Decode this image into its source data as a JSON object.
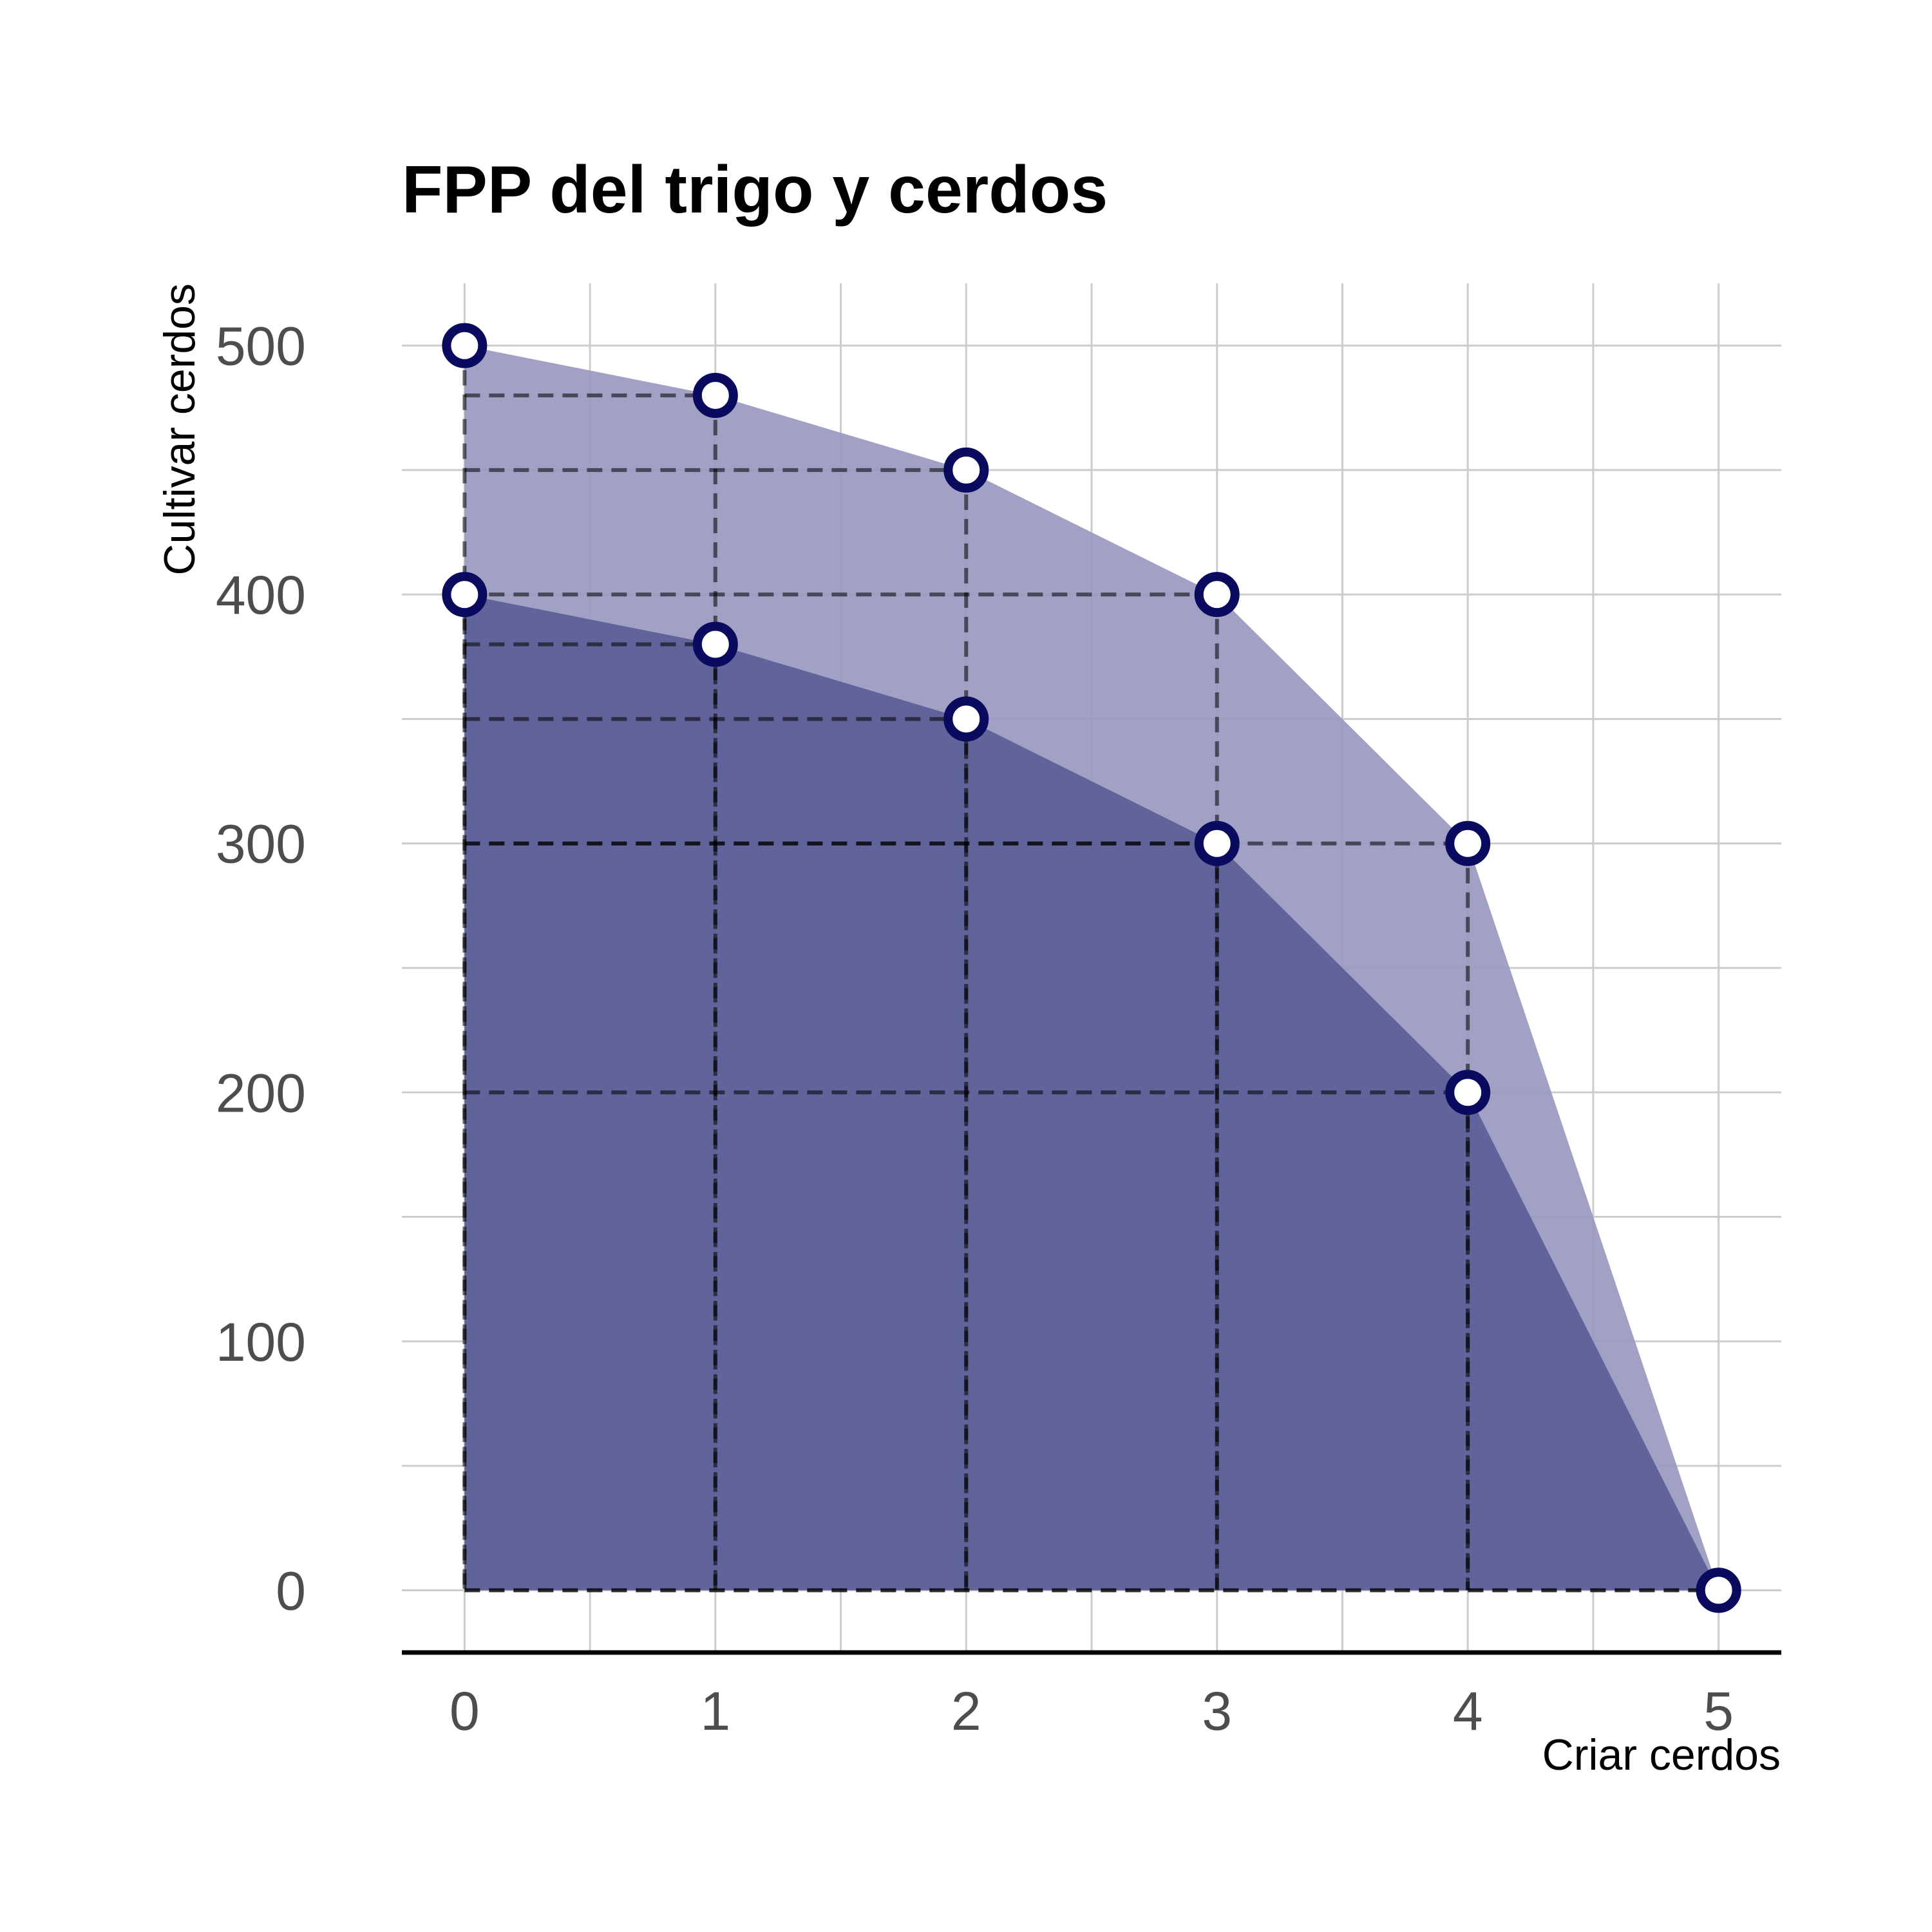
{
  "chart_data": {
    "type": "area",
    "title": "FPP del trigo y cerdos",
    "xlabel": "Criar cerdos",
    "ylabel": "Cultivar cerdos",
    "xlim": [
      -0.25,
      5.25
    ],
    "ylim": [
      -25,
      525
    ],
    "x_ticks": [
      0,
      1,
      2,
      3,
      4,
      5
    ],
    "y_ticks": [
      0,
      100,
      200,
      300,
      400,
      500
    ],
    "grid": true,
    "legend": "none",
    "series": [
      {
        "x": [
          0,
          1,
          2,
          3,
          4,
          5
        ],
        "y": [
          500,
          480,
          450,
          400,
          300,
          0
        ],
        "color": "#9899bf"
      },
      {
        "x": [
          0,
          1,
          2,
          3,
          4,
          5
        ],
        "y": [
          400,
          380,
          350,
          300,
          200,
          0
        ],
        "color": "#5b5e96"
      }
    ],
    "point_color": "#0a0a5e"
  }
}
